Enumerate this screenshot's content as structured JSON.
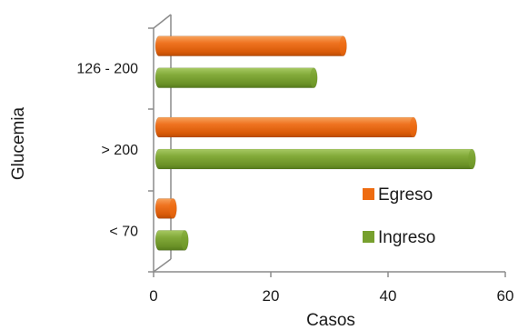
{
  "chart_data": {
    "type": "bar",
    "orientation": "horizontal",
    "style": "3d-cylinder",
    "categories": [
      "< 70",
      "> 200",
      "126 - 200"
    ],
    "series": [
      {
        "name": "Ingreso",
        "values": [
          5,
          54,
          27
        ],
        "color": "#77a02e"
      },
      {
        "name": "Egreso",
        "values": [
          3,
          44,
          32
        ],
        "color": "#ee6b10"
      }
    ],
    "xlabel": "Casos",
    "ylabel": "Glucemia",
    "xlim": [
      0,
      60
    ],
    "xticks": [
      "0",
      "20",
      "40",
      "60"
    ],
    "grid": false,
    "legend": {
      "position": "right",
      "order": [
        "Egreso",
        "Ingreso"
      ]
    }
  }
}
